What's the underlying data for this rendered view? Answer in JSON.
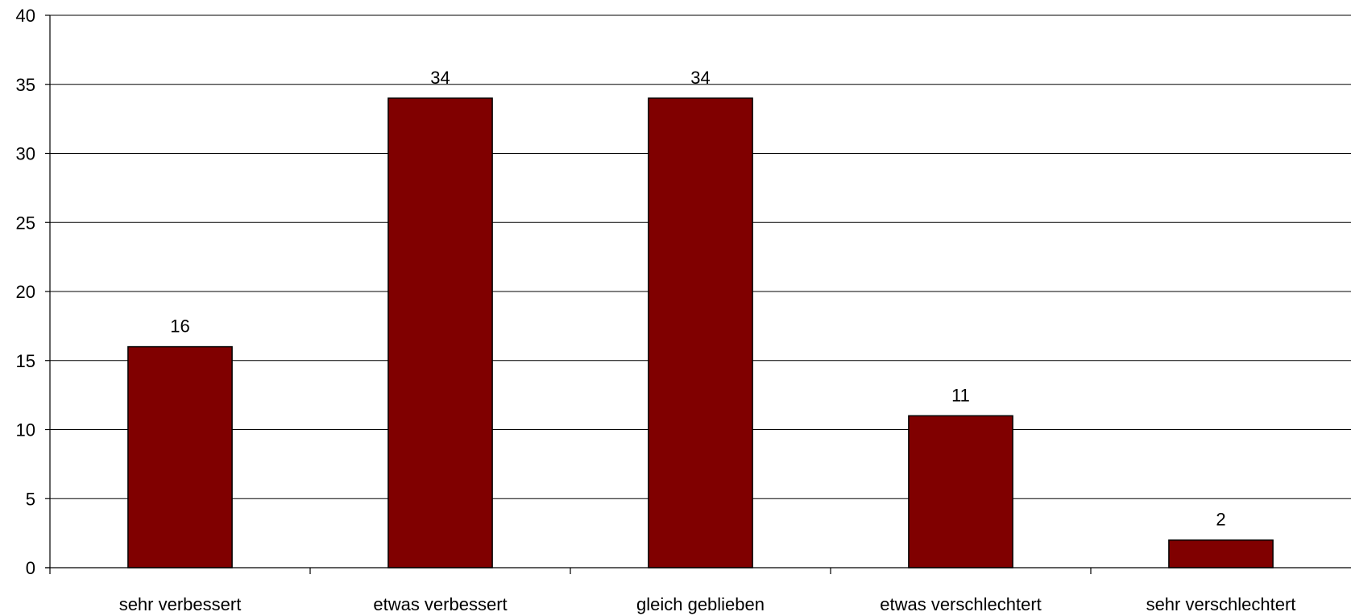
{
  "chart_data": {
    "type": "bar",
    "title": "",
    "xlabel": "",
    "ylabel": "",
    "categories": [
      "sehr verbessert",
      "etwas verbessert",
      "gleich geblieben",
      "etwas verschlechtert",
      "sehr verschlechtert"
    ],
    "values": [
      16,
      34,
      34,
      11,
      2
    ],
    "data_labels": [
      "16",
      "34",
      "34",
      "11",
      "2"
    ],
    "ylim": [
      0,
      40
    ],
    "yticks": [
      0,
      5,
      10,
      15,
      20,
      25,
      30,
      35,
      40
    ],
    "ytick_labels": [
      "0",
      "5",
      "10",
      "15",
      "20",
      "25",
      "30",
      "35",
      "40"
    ],
    "grid": true,
    "legend": "none",
    "bar_color": "#800000"
  }
}
